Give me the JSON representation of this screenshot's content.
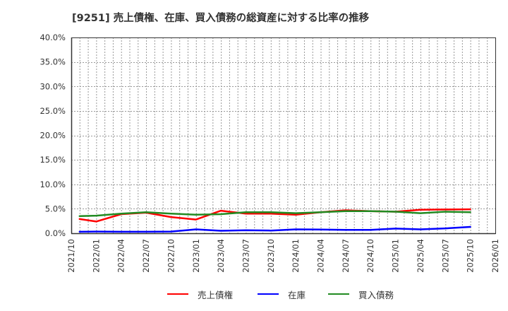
{
  "title": "[9251]  売上債権、在庫、買入債務の総資産に対する比率の推移",
  "colors": {
    "receivables": "#ff0000",
    "inventory": "#0000ff",
    "payables": "#228b22",
    "grid": "#999999",
    "axis": "#333333"
  },
  "legend": [
    {
      "label": "売上債権",
      "color": "#ff0000"
    },
    {
      "label": "在庫",
      "color": "#0000ff"
    },
    {
      "label": "買入債務",
      "color": "#228b22"
    }
  ],
  "chart_data": {
    "type": "line",
    "title": "[9251]  売上債権、在庫、買入債務の総資産に対する比率の推移",
    "xlabel": "",
    "ylabel": "",
    "ylim": [
      0,
      40
    ],
    "xlim": [
      "2021/10",
      "2026/01"
    ],
    "yticks": [
      "0.0%",
      "5.0%",
      "10.0%",
      "15.0%",
      "20.0%",
      "25.0%",
      "30.0%",
      "35.0%",
      "40.0%"
    ],
    "xticks": [
      "2021/10",
      "2022/01",
      "2022/04",
      "2022/07",
      "2022/10",
      "2023/01",
      "2023/04",
      "2023/07",
      "2023/10",
      "2024/01",
      "2024/04",
      "2024/07",
      "2024/10",
      "2025/01",
      "2025/04",
      "2025/07",
      "2025/10",
      "2026/01"
    ],
    "grid": true,
    "legend_position": "bottom",
    "x": [
      "2021/11",
      "2022/01",
      "2022/04",
      "2022/07",
      "2022/10",
      "2023/01",
      "2023/04",
      "2023/07",
      "2023/10",
      "2024/01",
      "2024/04",
      "2024/07",
      "2024/10",
      "2025/01",
      "2025/04",
      "2025/07",
      "2025/10"
    ],
    "series": [
      {
        "name": "売上債権",
        "color": "#ff0000",
        "values": [
          2.9,
          2.4,
          3.9,
          4.2,
          3.3,
          2.8,
          4.6,
          4.0,
          4.0,
          3.8,
          4.3,
          4.7,
          4.5,
          4.4,
          4.8,
          4.85,
          4.9
        ]
      },
      {
        "name": "在庫",
        "color": "#0000ff",
        "values": [
          0.3,
          0.35,
          0.3,
          0.3,
          0.35,
          0.8,
          0.5,
          0.6,
          0.55,
          0.8,
          0.75,
          0.7,
          0.7,
          0.95,
          0.8,
          1.0,
          1.3
        ]
      },
      {
        "name": "買入債務",
        "color": "#228b22",
        "values": [
          3.5,
          3.6,
          4.0,
          4.3,
          4.0,
          3.8,
          3.9,
          4.3,
          4.3,
          4.1,
          4.3,
          4.5,
          4.5,
          4.4,
          4.1,
          4.4,
          4.3
        ]
      }
    ]
  }
}
